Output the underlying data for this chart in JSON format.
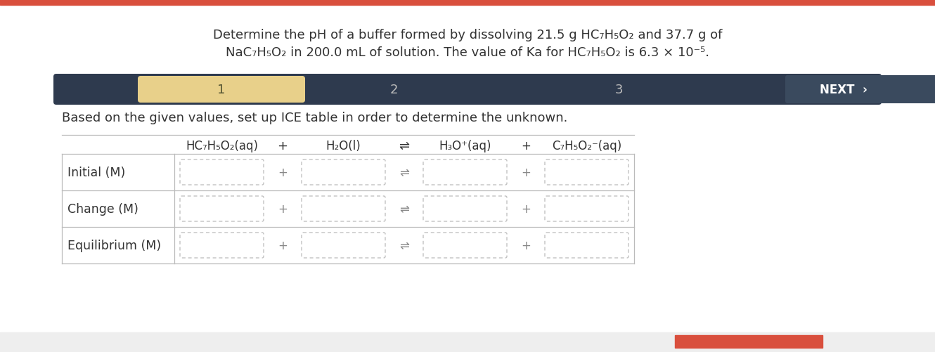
{
  "top_bar_color": "#d94f3d",
  "background_color": "#ffffff",
  "title_line1": "Determine the pH of a buffer formed by dissolving 21.5 g HC₇H₅O₂ and 37.7 g of",
  "title_line2": "NaC₇H₅O₂ in 200.0 mL of solution. The value of Ka for HC₇H₅O₂ is 6.3 × 10⁻⁵.",
  "nav_bar_color": "#2e3a4e",
  "nav_highlight_color": "#e8d08a",
  "nav_item1": "1",
  "nav_item2": "2",
  "nav_item3": "3",
  "nav_next": "NEXT",
  "instruction": "Based on the given values, set up ICE table in order to determine the unknown.",
  "col_header1": "HC₇H₅O₂(aq)",
  "col_op1": "+",
  "col_header2": "H₂O(l)",
  "col_op2": "⇌",
  "col_header3": "H₃O⁺(aq)",
  "col_op3": "+",
  "col_header4": "C₇H₅O₂⁻(aq)",
  "row_labels": [
    "Initial (M)",
    "Change (M)",
    "Equilibrium (M)"
  ],
  "bottom_gray": "#eeeeee",
  "bottom_red": "#d94f3d",
  "text_color": "#333333",
  "cell_border": "#bbbbbb"
}
